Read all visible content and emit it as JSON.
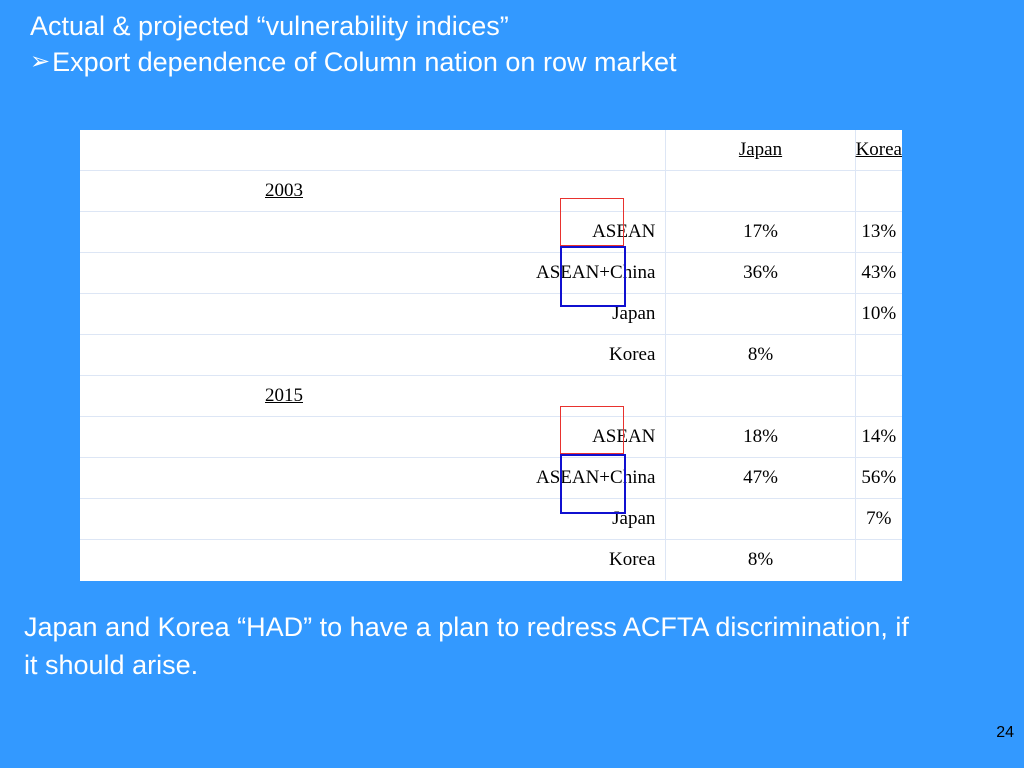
{
  "title": {
    "line1": "Actual & projected “vulnerability indices”",
    "bullet": "➢",
    "line2": "Export dependence of Column nation on row market"
  },
  "table": {
    "header": {
      "row_label": "",
      "col1": "Japan",
      "col2": "Korea"
    },
    "rows": [
      {
        "label": "2003",
        "japan": "",
        "korea": "",
        "type": "year"
      },
      {
        "label": "ASEAN",
        "japan": "17%",
        "korea": "13%"
      },
      {
        "label": "ASEAN+China",
        "japan": "36%",
        "korea": "43%"
      },
      {
        "label": "Japan",
        "japan": "",
        "korea": "10%"
      },
      {
        "label": "Korea",
        "japan": "8%",
        "korea": ""
      },
      {
        "label": "2015",
        "japan": "",
        "korea": "",
        "type": "year"
      },
      {
        "label": "ASEAN",
        "japan": "18%",
        "korea": "14%"
      },
      {
        "label": "ASEAN+China",
        "japan": "47%",
        "korea": "56%"
      },
      {
        "label": "Japan",
        "japan": "",
        "korea": "7%"
      },
      {
        "label": "Korea",
        "japan": "8%",
        "korea": ""
      }
    ]
  },
  "footnote": "Japan and Korea “HAD” to have a plan to redress ACFTA discrimination, if it should arise.",
  "page_number": "24",
  "colors": {
    "background": "#3399ff",
    "highlight_red": "#e8322e",
    "highlight_blue": "#1010d0"
  }
}
